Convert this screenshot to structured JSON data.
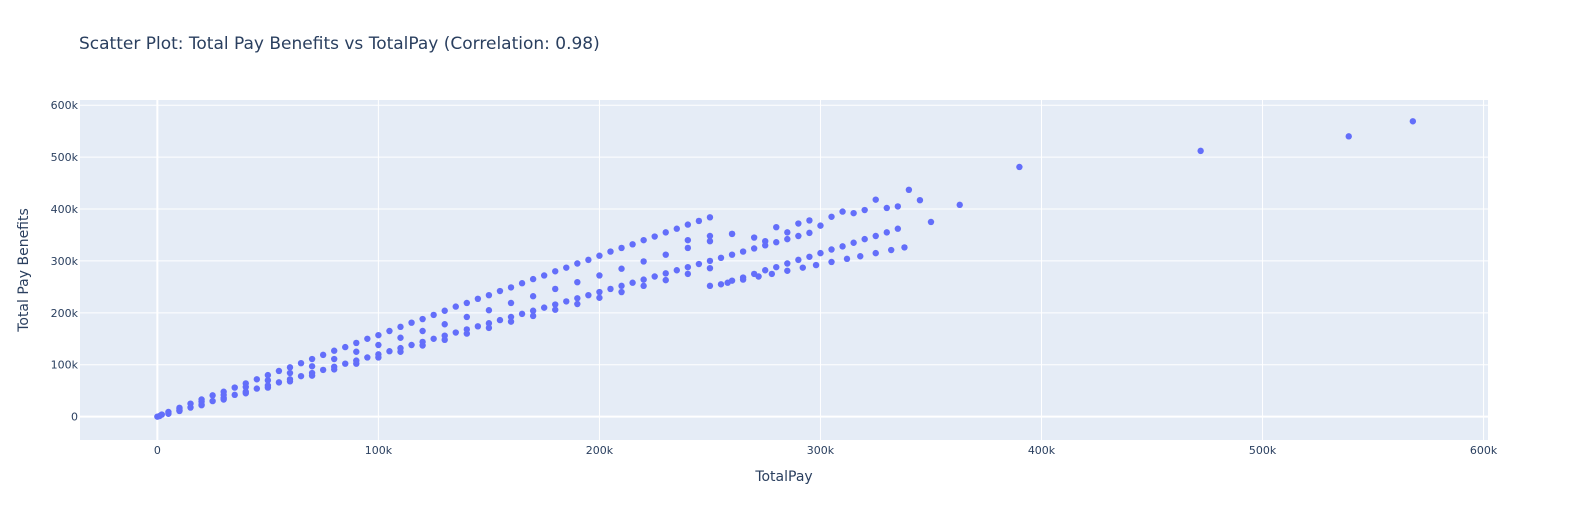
{
  "chart_data": {
    "type": "scatter",
    "title": "Scatter Plot: Total Pay Benefits vs TotalPay (Correlation: 0.98)",
    "xlabel": "TotalPay",
    "ylabel": "Total Pay Benefits",
    "xlim": [
      -35000,
      602000
    ],
    "ylim": [
      -45000,
      610000
    ],
    "x_ticks": [
      0,
      100000,
      200000,
      300000,
      400000,
      500000,
      600000
    ],
    "x_tick_labels": [
      "0",
      "100k",
      "200k",
      "300k",
      "400k",
      "500k",
      "600k"
    ],
    "y_ticks": [
      0,
      100000,
      200000,
      300000,
      400000,
      500000,
      600000
    ],
    "y_tick_labels": [
      "0",
      "100k",
      "200k",
      "300k",
      "400k",
      "500k",
      "600k"
    ],
    "grid": true,
    "marker_color": "#636efa",
    "background_color": "#e5ecf6",
    "series": [
      {
        "x": [
          0,
          2000,
          5000,
          10000,
          15000,
          20000,
          25000,
          30000,
          35000,
          40000,
          45000,
          50000,
          55000,
          60000,
          65000,
          70000,
          75000,
          80000,
          85000,
          90000,
          95000,
          100000,
          105000,
          110000,
          115000,
          120000,
          125000,
          130000,
          135000,
          140000,
          145000,
          150000,
          155000,
          160000,
          165000,
          170000,
          175000,
          180000,
          185000,
          190000,
          195000,
          200000,
          205000,
          210000,
          215000,
          220000,
          225000,
          230000,
          235000,
          240000,
          245000,
          250000,
          1000,
          5000,
          10000,
          15000,
          20000,
          25000,
          30000,
          35000,
          40000,
          45000,
          50000,
          55000,
          60000,
          65000,
          70000,
          75000,
          80000,
          85000,
          90000,
          95000,
          100000,
          105000,
          110000,
          115000,
          120000,
          125000,
          130000,
          135000,
          140000,
          145000,
          150000,
          155000,
          160000,
          165000,
          170000,
          175000,
          180000,
          185000,
          190000,
          195000,
          200000,
          205000,
          210000,
          215000,
          220000,
          225000,
          230000,
          235000,
          240000,
          245000,
          250000,
          255000,
          260000,
          265000,
          270000,
          275000,
          280000,
          285000,
          290000,
          295000,
          10000,
          20000,
          30000,
          40000,
          50000,
          60000,
          70000,
          80000,
          90000,
          100000,
          110000,
          120000,
          130000,
          140000,
          150000,
          160000,
          170000,
          180000,
          190000,
          200000,
          210000,
          220000,
          230000,
          240000,
          250000,
          260000,
          10000,
          20000,
          30000,
          40000,
          50000,
          60000,
          70000,
          80000,
          90000,
          100000,
          110000,
          120000,
          130000,
          140000,
          150000,
          160000,
          170000,
          180000,
          190000,
          200000,
          210000,
          220000,
          230000,
          240000,
          250000,
          255000,
          260000,
          265000,
          270000,
          275000,
          280000,
          285000,
          290000,
          295000,
          300000,
          305000,
          310000,
          315000,
          320000,
          325000,
          330000,
          335000,
          250000,
          258000,
          265000,
          272000,
          278000,
          285000,
          292000,
          298000,
          305000,
          312000,
          318000,
          325000,
          332000,
          338000,
          240000,
          250000,
          260000,
          270000,
          275000,
          280000,
          285000,
          290000,
          295000,
          300000,
          305000,
          310000,
          315000,
          320000,
          325000,
          330000,
          335000,
          340000,
          345000,
          350000,
          363000,
          390000,
          472000,
          539000,
          568000
        ],
        "y": [
          0,
          4000,
          9000,
          17000,
          25000,
          33000,
          41000,
          48000,
          56000,
          64000,
          72000,
          80000,
          88000,
          95000,
          103000,
          111000,
          119000,
          127000,
          134000,
          142000,
          150000,
          157000,
          165000,
          173000,
          181000,
          188000,
          196000,
          204000,
          212000,
          219000,
          227000,
          234000,
          242000,
          249000,
          257000,
          265000,
          272000,
          280000,
          287000,
          295000,
          302000,
          310000,
          318000,
          325000,
          332000,
          340000,
          347000,
          355000,
          362000,
          370000,
          377000,
          384000,
          1200,
          5500,
          11500,
          17500,
          23500,
          30000,
          36000,
          42000,
          48000,
          54000,
          60000,
          66000,
          72000,
          78000,
          84000,
          90000,
          96000,
          102000,
          108000,
          114000,
          120000,
          126000,
          132000,
          138000,
          144000,
          150000,
          156000,
          162000,
          168000,
          174000,
          180000,
          186000,
          192000,
          198000,
          204000,
          210000,
          216000,
          222000,
          228000,
          234000,
          240000,
          246000,
          252000,
          258000,
          264000,
          270000,
          276000,
          282000,
          288000,
          294000,
          300000,
          306000,
          312000,
          318000,
          324000,
          330000,
          336000,
          342000,
          348000,
          354000,
          15000,
          29000,
          42000,
          57000,
          70000,
          84000,
          97000,
          111000,
          125000,
          138000,
          152000,
          165000,
          178000,
          192000,
          205000,
          219000,
          232000,
          246000,
          259000,
          272000,
          285000,
          299000,
          312000,
          325000,
          338000,
          352000,
          11000,
          22000,
          33000,
          45000,
          56000,
          68000,
          79000,
          91000,
          102000,
          114000,
          125000,
          137000,
          148000,
          160000,
          171000,
          183000,
          194000,
          206000,
          217000,
          229000,
          240000,
          252000,
          263000,
          275000,
          286000,
          255000,
          262000,
          268000,
          275000,
          282000,
          288000,
          295000,
          302000,
          308000,
          315000,
          322000,
          328000,
          335000,
          342000,
          348000,
          355000,
          362000,
          252000,
          258000,
          264000,
          270000,
          275000,
          281000,
          287000,
          292000,
          298000,
          304000,
          309000,
          315000,
          321000,
          326000,
          340000,
          348000,
          352000,
          345000,
          338000,
          365000,
          355000,
          372000,
          378000,
          368000,
          385000,
          395000,
          392000,
          398000,
          418000,
          402000,
          405000,
          437000,
          417000,
          375000,
          408000,
          481000,
          512000,
          540000,
          569000
        ]
      }
    ]
  }
}
